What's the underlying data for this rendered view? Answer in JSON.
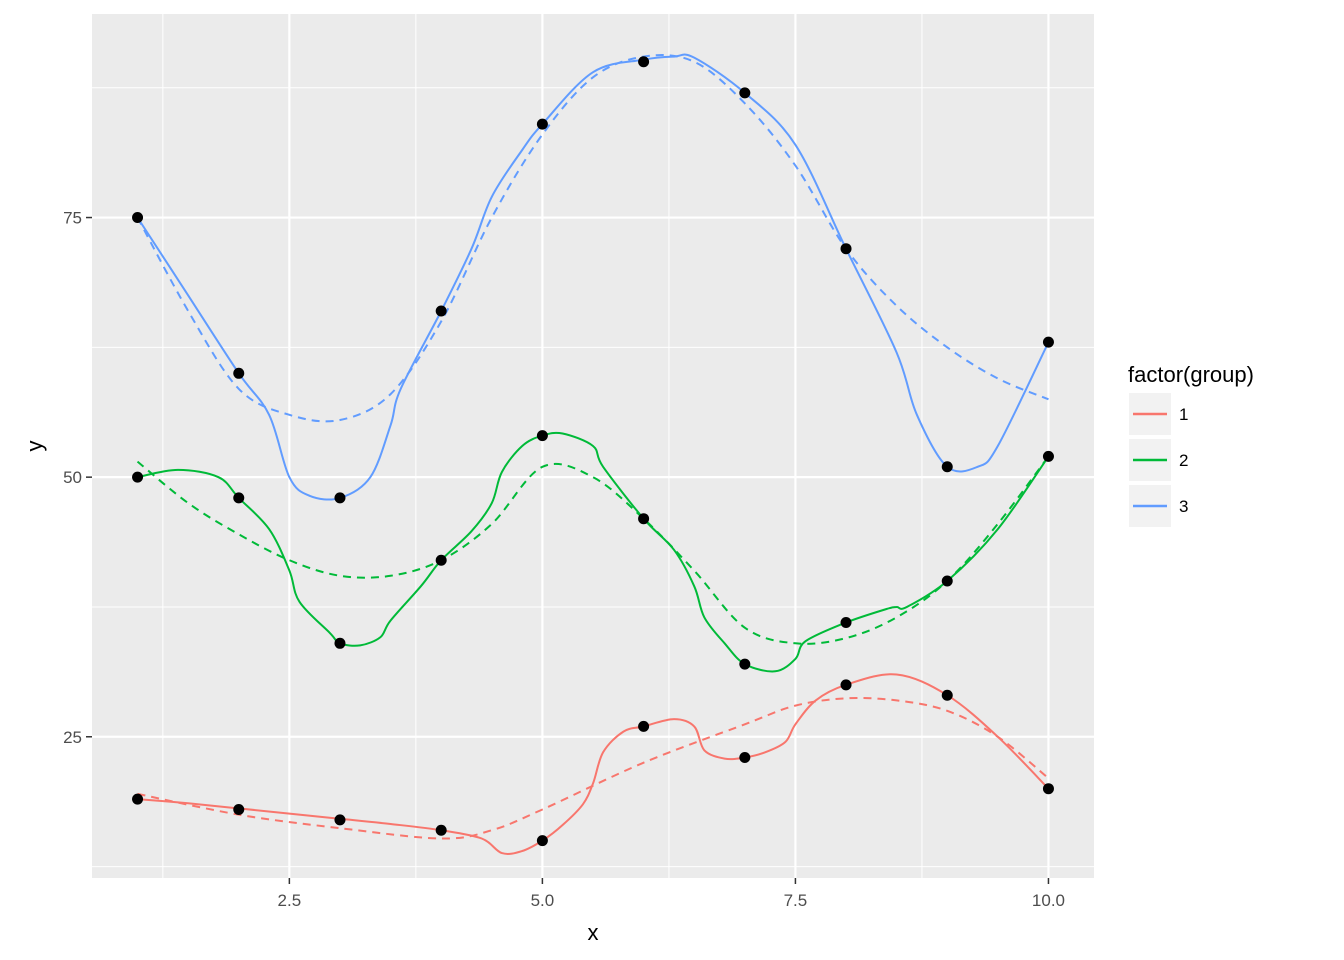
{
  "chart_data": {
    "type": "line",
    "xlabel": "x",
    "ylabel": "y",
    "xlim": [
      0.55,
      10.45
    ],
    "ylim": [
      11.4,
      94.6
    ],
    "x_ticks": [
      2.5,
      5.0,
      7.5,
      10.0
    ],
    "x_tick_labels": [
      "2.5",
      "5.0",
      "7.5",
      "10.0"
    ],
    "y_ticks": [
      25,
      50,
      75
    ],
    "y_tick_labels": [
      "25",
      "50",
      "75"
    ],
    "grid": true,
    "legend": {
      "title": "factor(group)",
      "position": "right",
      "entries": [
        "1",
        "2",
        "3"
      ]
    },
    "x": [
      1,
      2,
      3,
      4,
      5,
      6,
      7,
      8,
      9,
      10
    ],
    "series": [
      {
        "name": "1",
        "color": "#F8766D",
        "points": [
          19,
          18,
          17,
          16,
          15,
          26,
          23,
          30,
          29,
          20
        ],
        "spline": [
          [
            1,
            19
          ],
          [
            1.5,
            18.6
          ],
          [
            2,
            18.1
          ],
          [
            2.5,
            17.6
          ],
          [
            3,
            17.1
          ],
          [
            3.5,
            16.6
          ],
          [
            4,
            16.0
          ],
          [
            4.4,
            15.2
          ],
          [
            4.6,
            13.8
          ],
          [
            4.8,
            14.0
          ],
          [
            5,
            15
          ],
          [
            5.2,
            16.5
          ],
          [
            5.4,
            18.5
          ],
          [
            5.5,
            20.5
          ],
          [
            5.6,
            23.5
          ],
          [
            5.8,
            25.5
          ],
          [
            6,
            26
          ],
          [
            6.3,
            26.7
          ],
          [
            6.5,
            26.0
          ],
          [
            6.6,
            23.7
          ],
          [
            6.8,
            22.9
          ],
          [
            7,
            23
          ],
          [
            7.2,
            23.5
          ],
          [
            7.4,
            24.5
          ],
          [
            7.5,
            26.2
          ],
          [
            7.7,
            28.5
          ],
          [
            8,
            30
          ],
          [
            8.5,
            31
          ],
          [
            9,
            29
          ],
          [
            9.5,
            25
          ],
          [
            10,
            20
          ]
        ],
        "loess": [
          [
            1,
            19.5
          ],
          [
            2,
            17.5
          ],
          [
            3,
            16.2
          ],
          [
            4,
            15.2
          ],
          [
            4.5,
            16
          ],
          [
            5,
            18
          ],
          [
            6,
            22.5
          ],
          [
            7,
            26.2
          ],
          [
            7.5,
            28
          ],
          [
            8,
            28.7
          ],
          [
            8.5,
            28.5
          ],
          [
            9,
            27.5
          ],
          [
            9.5,
            25
          ],
          [
            10,
            21
          ]
        ]
      },
      {
        "name": "2",
        "color": "#00BA38",
        "points": [
          50,
          48,
          34,
          42,
          54,
          46,
          32,
          36,
          40,
          52
        ],
        "spline": [
          [
            1,
            50
          ],
          [
            1.4,
            50.7
          ],
          [
            1.8,
            50
          ],
          [
            2,
            48
          ],
          [
            2.3,
            45
          ],
          [
            2.5,
            41
          ],
          [
            2.6,
            38
          ],
          [
            2.9,
            35
          ],
          [
            3,
            34
          ],
          [
            3.2,
            33.8
          ],
          [
            3.4,
            34.6
          ],
          [
            3.5,
            36.2
          ],
          [
            3.8,
            39.5
          ],
          [
            4,
            42
          ],
          [
            4.3,
            44.8
          ],
          [
            4.5,
            47.5
          ],
          [
            4.6,
            50.5
          ],
          [
            4.8,
            53
          ],
          [
            5,
            54
          ],
          [
            5.2,
            54.2
          ],
          [
            5.5,
            53
          ],
          [
            5.6,
            51
          ],
          [
            6,
            46
          ],
          [
            6.3,
            43
          ],
          [
            6.5,
            39.5
          ],
          [
            6.6,
            36.5
          ],
          [
            6.8,
            34
          ],
          [
            7,
            32
          ],
          [
            7.3,
            31.3
          ],
          [
            7.5,
            32.5
          ],
          [
            7.6,
            34.2
          ],
          [
            8,
            36
          ],
          [
            8.4,
            37.3
          ],
          [
            8.5,
            37.5
          ],
          [
            8.6,
            37.5
          ],
          [
            9,
            40
          ],
          [
            9.5,
            45
          ],
          [
            10,
            52
          ]
        ],
        "loess": [
          [
            1,
            51.5
          ],
          [
            1.5,
            47.5
          ],
          [
            2,
            44.5
          ],
          [
            2.5,
            42
          ],
          [
            3,
            40.5
          ],
          [
            3.5,
            40.5
          ],
          [
            4,
            42
          ],
          [
            4.5,
            45.5
          ],
          [
            5,
            51
          ],
          [
            5.5,
            50
          ],
          [
            6,
            46
          ],
          [
            6.5,
            41
          ],
          [
            7,
            35.5
          ],
          [
            7.5,
            34
          ],
          [
            8,
            34.5
          ],
          [
            8.5,
            36.5
          ],
          [
            9,
            40
          ],
          [
            9.5,
            45.5
          ],
          [
            10,
            52
          ]
        ]
      },
      {
        "name": "3",
        "color": "#619CFF",
        "points": [
          75,
          60,
          48,
          66,
          84,
          90,
          87,
          72,
          51,
          63
        ],
        "spline": [
          [
            1,
            75
          ],
          [
            1.5,
            67.5
          ],
          [
            2,
            60
          ],
          [
            2.3,
            56
          ],
          [
            2.5,
            50
          ],
          [
            2.7,
            48.2
          ],
          [
            3,
            48
          ],
          [
            3.3,
            50
          ],
          [
            3.5,
            55
          ],
          [
            3.6,
            58.5
          ],
          [
            4,
            66
          ],
          [
            4.3,
            72
          ],
          [
            4.5,
            77
          ],
          [
            4.8,
            81.5
          ],
          [
            5,
            84
          ],
          [
            5.5,
            89
          ],
          [
            6,
            90.2
          ],
          [
            6.3,
            90.5
          ],
          [
            6.5,
            90.4
          ],
          [
            7,
            87
          ],
          [
            7.5,
            82
          ],
          [
            8,
            72
          ],
          [
            8.5,
            62
          ],
          [
            8.7,
            56
          ],
          [
            9,
            51
          ],
          [
            9.3,
            51
          ],
          [
            9.5,
            53
          ],
          [
            10,
            63
          ]
        ],
        "loess": [
          [
            1,
            75
          ],
          [
            1.5,
            66
          ],
          [
            2,
            58.5
          ],
          [
            2.5,
            56
          ],
          [
            3,
            55.5
          ],
          [
            3.5,
            58
          ],
          [
            4,
            65
          ],
          [
            4.5,
            75
          ],
          [
            5,
            83
          ],
          [
            5.5,
            88.5
          ],
          [
            6,
            90.5
          ],
          [
            6.5,
            90
          ],
          [
            7,
            86
          ],
          [
            7.5,
            80
          ],
          [
            8,
            72
          ],
          [
            8.5,
            66.5
          ],
          [
            9,
            62.5
          ],
          [
            9.5,
            59.5
          ],
          [
            10,
            57.5
          ]
        ]
      }
    ]
  }
}
